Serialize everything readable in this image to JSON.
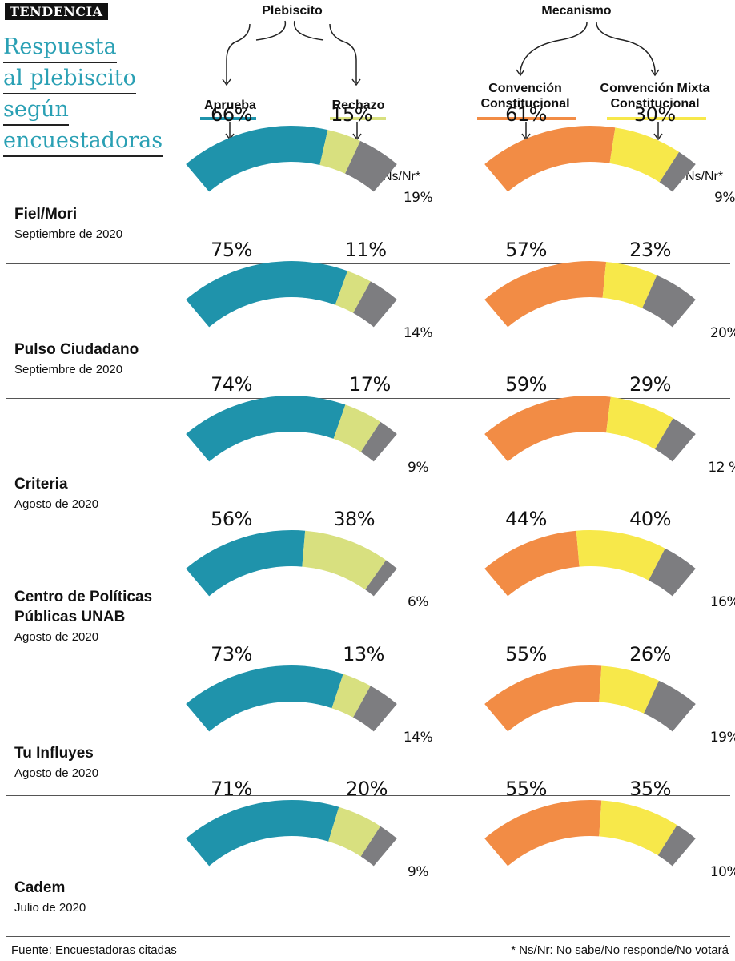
{
  "tag": "TENDENCIA",
  "title_lines": [
    "Respuesta",
    "al plebiscito",
    "según",
    "encuestadoras"
  ],
  "groups": {
    "plebiscito": "Plebiscito",
    "mecanismo": "Mecanismo"
  },
  "categories": {
    "aprueba": "Aprueba",
    "rechazo": "Rechazo",
    "convencion_constitucional": [
      "Convención",
      "Constitucional"
    ],
    "convencion_mixta": [
      "Convención Mixta",
      "Constitucional"
    ]
  },
  "nsnr_label": "Ns/Nr*",
  "colors": {
    "aprueba": "#1f93ab",
    "rechazo": "#d8e07f",
    "nsnr": "#7d7d80",
    "convencion": "#f28c45",
    "mixta": "#f7e84a"
  },
  "chart_data": [
    {
      "type": "pie",
      "title": "Plebiscito",
      "categories": [
        "Aprueba",
        "Rechazo",
        "Ns/Nr"
      ],
      "series": [
        {
          "name": "Fiel/Mori",
          "date": "Septiembre de 2020",
          "values": [
            66,
            15,
            19
          ],
          "labels": [
            "66%",
            "15%",
            "19%"
          ]
        },
        {
          "name": "Pulso Ciudadano",
          "date": "Septiembre de 2020",
          "values": [
            75,
            11,
            14
          ],
          "labels": [
            "75%",
            "11%",
            "14%"
          ]
        },
        {
          "name": "Criteria",
          "date": "Agosto de 2020",
          "values": [
            74,
            17,
            9
          ],
          "labels": [
            "74%",
            "17%",
            "9%"
          ]
        },
        {
          "name": "Centro de Políticas Públicas UNAB",
          "date": "Agosto de 2020",
          "values": [
            56,
            38,
            6
          ],
          "labels": [
            "56%",
            "38%",
            "6%"
          ]
        },
        {
          "name": "Tu Influyes",
          "date": "Agosto de 2020",
          "values": [
            73,
            13,
            14
          ],
          "labels": [
            "73%",
            "13%",
            "14%"
          ]
        },
        {
          "name": "Cadem",
          "date": "Julio de 2020",
          "values": [
            71,
            20,
            9
          ],
          "labels": [
            "71%",
            "20%",
            "9%"
          ]
        }
      ]
    },
    {
      "type": "pie",
      "title": "Mecanismo",
      "categories": [
        "Convención Constitucional",
        "Convención Mixta Constitucional",
        "Ns/Nr"
      ],
      "series": [
        {
          "name": "Fiel/Mori",
          "date": "Septiembre de 2020",
          "values": [
            61,
            30,
            9
          ],
          "labels": [
            "61%",
            "30%",
            "9%"
          ]
        },
        {
          "name": "Pulso Ciudadano",
          "date": "Septiembre de 2020",
          "values": [
            57,
            23,
            20
          ],
          "labels": [
            "57%",
            "23%",
            "20%"
          ]
        },
        {
          "name": "Criteria",
          "date": "Agosto de 2020",
          "values": [
            59,
            29,
            12
          ],
          "labels": [
            "59%",
            "29%",
            "12 %"
          ]
        },
        {
          "name": "Centro de Políticas Públicas UNAB",
          "date": "Agosto de 2020",
          "values": [
            44,
            40,
            16
          ],
          "labels": [
            "44%",
            "40%",
            "16%"
          ]
        },
        {
          "name": "Tu Influyes",
          "date": "Agosto de 2020",
          "values": [
            55,
            26,
            19
          ],
          "labels": [
            "55%",
            "26%",
            "19%"
          ]
        },
        {
          "name": "Cadem",
          "date": "Julio de 2020",
          "values": [
            55,
            35,
            10
          ],
          "labels": [
            "55%",
            "35%",
            "10%"
          ]
        }
      ]
    }
  ],
  "pollster_lines": [
    [
      "Fiel/Mori"
    ],
    [
      "Pulso Ciudadano"
    ],
    [
      "Criteria"
    ],
    [
      "Centro de Políticas",
      "Públicas UNAB"
    ],
    [
      "Tu Influyes"
    ],
    [
      "Cadem"
    ]
  ],
  "footer": {
    "source": "Fuente: Encuestadoras citadas",
    "note": "* Ns/Nr: No sabe/No responde/No votará"
  }
}
